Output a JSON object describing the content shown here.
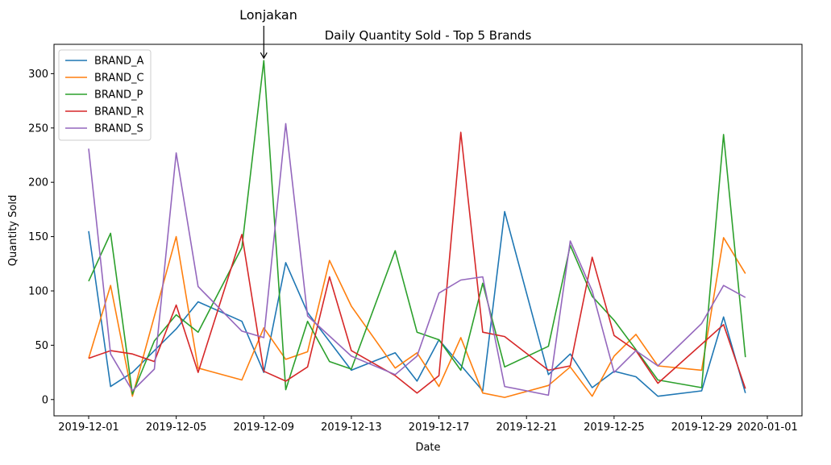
{
  "chart_data": {
    "type": "line",
    "title": "Daily Quantity Sold - Top 5 Brands",
    "xlabel": "Date",
    "ylabel": "Quantity Sold",
    "x": [
      "2019-12-01",
      "2019-12-02",
      "2019-12-03",
      "2019-12-04",
      "2019-12-05",
      "2019-12-06",
      "2019-12-07",
      "2019-12-08",
      "2019-12-09",
      "2019-12-10",
      "2019-12-11",
      "2019-12-12",
      "2019-12-13",
      "2019-12-14",
      "2019-12-15",
      "2019-12-16",
      "2019-12-17",
      "2019-12-18",
      "2019-12-19",
      "2019-12-20",
      "2019-12-21",
      "2019-12-22",
      "2019-12-23",
      "2019-12-24",
      "2019-12-25",
      "2019-12-26",
      "2019-12-27",
      "2019-12-28",
      "2019-12-29",
      "2019-12-30",
      "2019-12-31"
    ],
    "xlim": [
      "2019-11-29T10:00",
      "2020-01-02T14:00"
    ],
    "xticks": [
      "2019-12-01",
      "2019-12-05",
      "2019-12-09",
      "2019-12-13",
      "2019-12-17",
      "2019-12-21",
      "2019-12-25",
      "2019-12-29",
      "2020-01-01"
    ],
    "ylim": [
      -15,
      327
    ],
    "yticks": [
      0,
      50,
      100,
      150,
      200,
      250,
      300
    ],
    "grid": false,
    "legend_position": "top-left",
    "series": [
      {
        "name": "BRAND_A",
        "color": "#1f77b4",
        "values": [
          155,
          12,
          25,
          null,
          65,
          90,
          null,
          72,
          25,
          126,
          80,
          null,
          27,
          null,
          43,
          17,
          55,
          null,
          8,
          173,
          null,
          23,
          42,
          11,
          26,
          21,
          3,
          null,
          8,
          76,
          6
        ]
      },
      {
        "name": "BRAND_C",
        "color": "#ff7f0e",
        "values": [
          38,
          105,
          3,
          null,
          150,
          29,
          null,
          18,
          66,
          37,
          44,
          128,
          86,
          null,
          29,
          43,
          12,
          57,
          6,
          2,
          null,
          13,
          30,
          3,
          40,
          60,
          31,
          null,
          27,
          149,
          116
        ]
      },
      {
        "name": "BRAND_P",
        "color": "#2ca02c",
        "values": [
          109,
          153,
          5,
          54,
          78,
          62,
          null,
          140,
          312,
          9,
          72,
          35,
          28,
          null,
          137,
          62,
          55,
          27,
          107,
          30,
          null,
          49,
          142,
          95,
          73,
          46,
          18,
          null,
          11,
          244,
          39
        ]
      },
      {
        "name": "BRAND_R",
        "color": "#d62728",
        "values": [
          38,
          45,
          42,
          35,
          87,
          25,
          null,
          152,
          26,
          17,
          30,
          113,
          45,
          null,
          22,
          6,
          22,
          246,
          62,
          58,
          null,
          27,
          31,
          131,
          59,
          45,
          15,
          null,
          null,
          69,
          10
        ]
      },
      {
        "name": "BRAND_S",
        "color": "#9467bd",
        "values": [
          231,
          42,
          8,
          28,
          227,
          104,
          null,
          63,
          57,
          254,
          77,
          null,
          40,
          null,
          23,
          40,
          98,
          110,
          113,
          12,
          null,
          4,
          146,
          100,
          25,
          45,
          31,
          null,
          70,
          105,
          94
        ]
      }
    ],
    "annotation": {
      "text": "Lonjakan",
      "target_x": "2019-12-09",
      "target_y": 312
    }
  }
}
